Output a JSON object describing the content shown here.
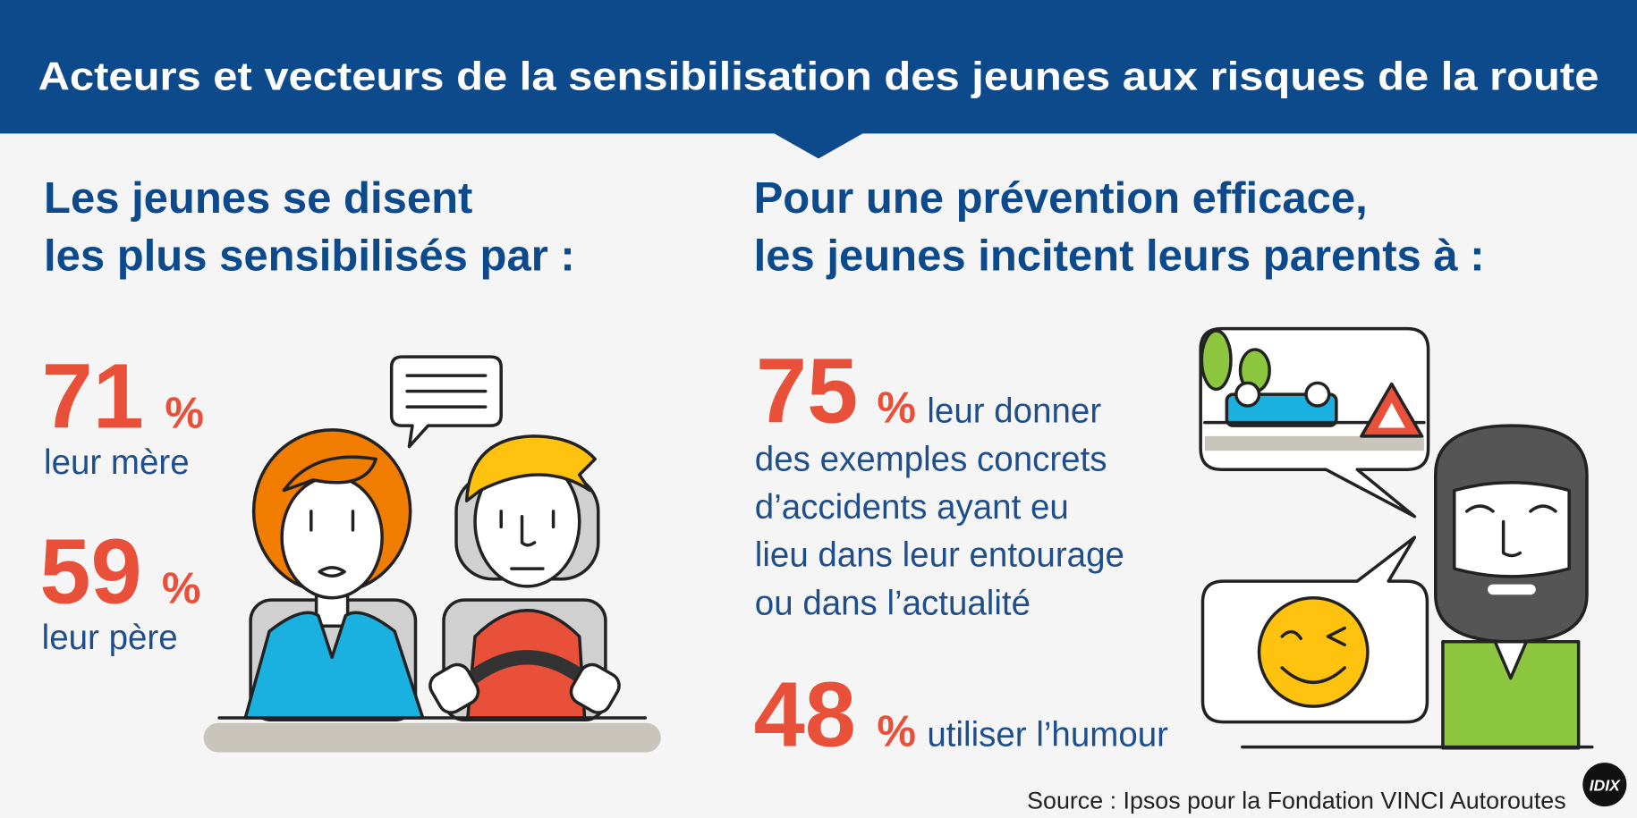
{
  "header": {
    "title": "Acteurs et vecteurs de la sensibilisation des jeunes aux risques de la route"
  },
  "left": {
    "heading": [
      "Les jeunes se disent",
      "les plus sensibilisés par :"
    ],
    "stats": [
      {
        "value": 71,
        "unit": "%",
        "label": "leur mère"
      },
      {
        "value": 59,
        "unit": "%",
        "label": "leur père"
      }
    ]
  },
  "right": {
    "heading": [
      "Pour une prévention efficace,",
      "les jeunes incitent leurs parents à :"
    ],
    "stats": [
      {
        "value": 75,
        "unit": "%",
        "label": [
          "leur donner",
          "des exemples concrets",
          "d’accidents ayant eu",
          "lieu dans leur entourage",
          "ou dans l’actualité"
        ]
      },
      {
        "value": 48,
        "unit": "%",
        "label": [
          "utiliser l’humour"
        ]
      }
    ]
  },
  "source": "Source : Ipsos pour la Fondation VINCI Autoroutes",
  "logo": "IDIX"
}
